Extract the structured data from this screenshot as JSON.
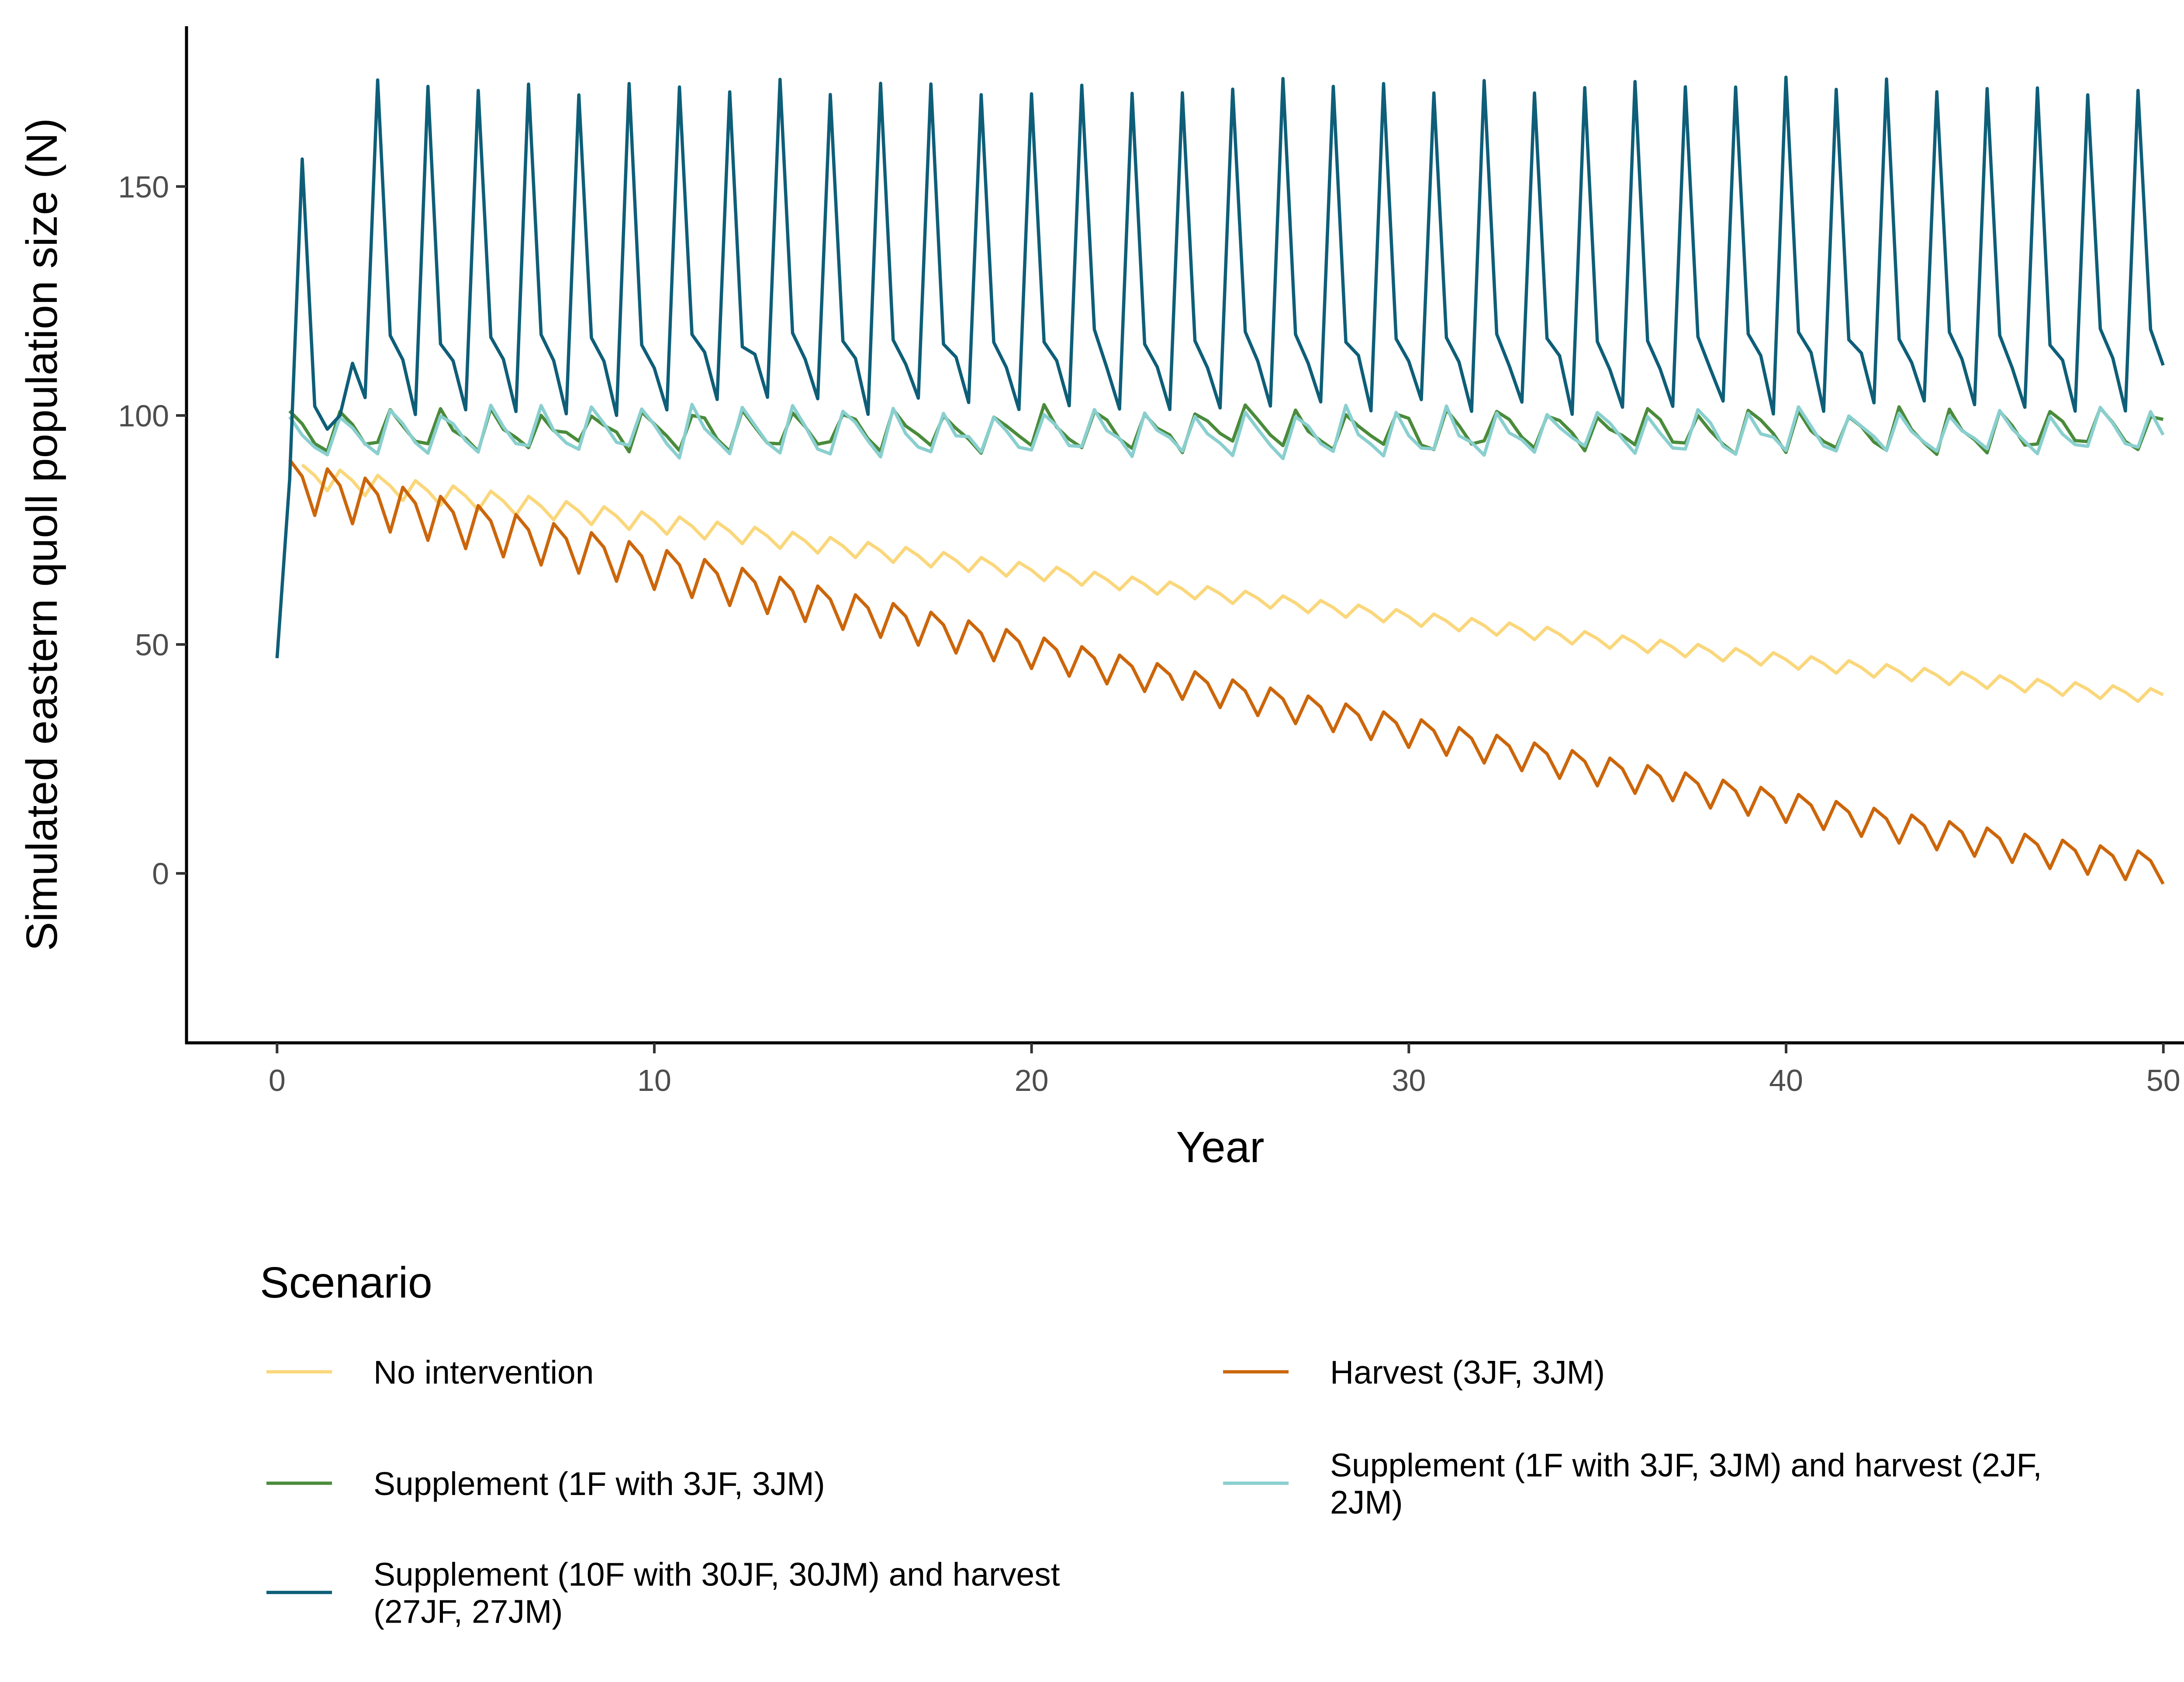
{
  "chart_data": {
    "type": "line",
    "xlabel": "Year",
    "ylabel": "Simulated eastern quoll population size (N)",
    "xlim": [
      -2.4,
      52.4
    ],
    "ylim": [
      -37,
      185
    ],
    "x_ticks": [
      0,
      10,
      20,
      30,
      40,
      50
    ],
    "y_ticks": [
      0,
      50,
      100,
      150
    ],
    "grid": false,
    "legend": {
      "title": "Scenario",
      "position": "bottom",
      "columns": 2
    },
    "x_step": 0.3333,
    "series": [
      {
        "name": "No intervention",
        "color": "#FAD77B",
        "model": {
          "type": "decline",
          "start": 88,
          "end": 39,
          "phases": [
            2,
            0,
            -3
          ],
          "pattern": "steps"
        },
        "x_start": 0.667,
        "x_end": 50,
        "legend_lines": [
          "No intervention"
        ]
      },
      {
        "name": "Harvest (3JF, 3JM)",
        "color": "#CC660A",
        "model": {
          "type": "decline",
          "start": 88,
          "end": 2.5,
          "phases": [
            3,
            0,
            -8
          ],
          "pattern": "sawtooth"
        },
        "x_start": 0.333,
        "x_end": 50,
        "legend_lines": [
          "Harvest (3JF, 3JM)"
        ]
      },
      {
        "name": "Supplement (1F with 3JF, 3JM)",
        "color": "#4A8B3B",
        "model": {
          "type": "oscillate",
          "cycle": [
            101,
            98,
            95,
            93
          ],
          "noise": 1.5
        },
        "x_start": 0.333,
        "x_end": 50,
        "legend_lines": [
          "Supplement (1F with 3JF, 3JM)"
        ]
      },
      {
        "name": "Supplement (1F with 3JF, 3JM) and harvest (2JF, 2JM)",
        "color": "#8ACFCF",
        "model": {
          "type": "oscillate",
          "cycle": [
            101,
            97,
            94,
            92
          ],
          "noise": 1.5
        },
        "x_start": 0.333,
        "x_end": 50,
        "legend_lines": [
          "Supplement (1F with 3JF, 3JM) and harvest (2JF,",
          "2JM)"
        ]
      },
      {
        "name": "Supplement (10F with 30JF, 30JM) and harvest (27JF, 27JM)",
        "color": "#0E5E78",
        "model": {
          "type": "oscillate",
          "cycle": [
            172,
            117,
            112,
            102
          ],
          "noise": 2
        },
        "x_start": 0,
        "x_end": 50,
        "legend_lines": [
          "Supplement (10F with 30JF, 30JM) and harvest",
          "(27JF, 27JM)"
        ]
      }
    ]
  }
}
